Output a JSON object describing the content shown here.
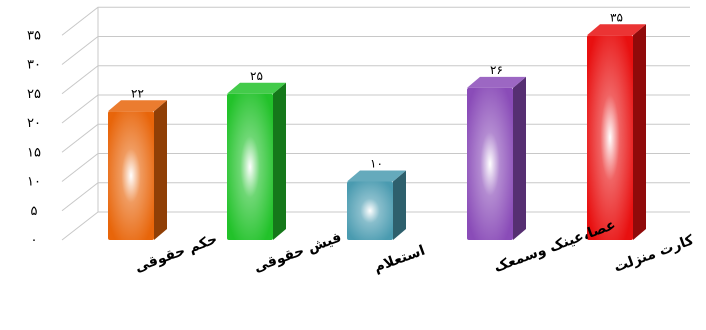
{
  "chart_data": {
    "type": "bar",
    "categories": [
      "حکم حقوقی",
      "فیش حقوقی",
      "استعلام",
      "عصا،عینک وسمعک",
      "کارت منزلت"
    ],
    "values": [
      22,
      25,
      10,
      26,
      35
    ],
    "value_labels": [
      "۲۲",
      "۲۵",
      "۱۰",
      "۲۶",
      "۳۵"
    ],
    "colors": [
      "#e8650a",
      "#22c22a",
      "#4a9bb0",
      "#8a4cb8",
      "#e81010"
    ],
    "ylim": [
      0,
      35
    ],
    "yticks": [
      0,
      5,
      10,
      15,
      20,
      25,
      30,
      35
    ],
    "ytick_labels": [
      "۰",
      "۵",
      "۱۰",
      "۱۵",
      "۲۰",
      "۲۵",
      "۳۰",
      "۳۵"
    ],
    "grid": true,
    "style": "3d-cylinder"
  }
}
